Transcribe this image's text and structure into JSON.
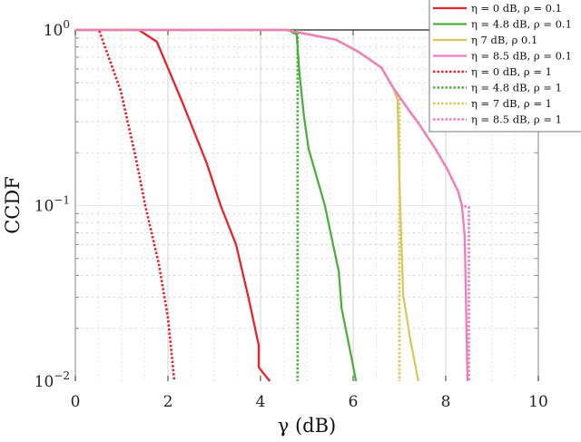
{
  "chart_data": {
    "type": "line",
    "title": "",
    "xlabel": "γ (dB)",
    "ylabel": "CCDF",
    "xlim": [
      0,
      10
    ],
    "ylim": [
      0.01,
      1
    ],
    "yscale": "log",
    "x_ticks": [
      0,
      2,
      4,
      6,
      8,
      10
    ],
    "x_tick_labels": [
      "0",
      "2",
      "4",
      "6",
      "8",
      "10"
    ],
    "y_ticks": [
      1,
      0.1,
      0.01
    ],
    "y_tick_labels": [
      {
        "base": "10",
        "exp": "0"
      },
      {
        "base": "10",
        "exp": "−1"
      },
      {
        "base": "10",
        "exp": "−2"
      }
    ],
    "grid": true,
    "legend_position": "top-right",
    "series": [
      {
        "name": "η = 0 dB, ρ = 0.1",
        "color": "#e8232a",
        "style": "solid",
        "x": [
          0,
          1.37,
          1.76,
          2.0,
          2.29,
          2.84,
          3.14,
          3.47,
          3.75,
          3.96,
          3.96,
          4.2
        ],
        "y": [
          1,
          1.0,
          0.857,
          0.607,
          0.4,
          0.174,
          0.1,
          0.06,
          0.029,
          0.016,
          0.012,
          0.01
        ]
      },
      {
        "name": "η = 4.8 dB, ρ = 0.1",
        "color": "#4caf3e",
        "style": "solid",
        "x": [
          0,
          4.6,
          4.78,
          4.84,
          4.94,
          5.04,
          5.39,
          5.69,
          5.75,
          5.98,
          6.06
        ],
        "y": [
          1,
          1,
          0.94,
          0.57,
          0.32,
          0.21,
          0.1,
          0.042,
          0.026,
          0.013,
          0.01
        ]
      },
      {
        "name": "η = 7 dB, ρ = 0.1",
        "color": "#d9c85a",
        "style": "solid",
        "x": [
          0,
          4.55,
          5.63,
          6.12,
          6.61,
          6.86,
          6.96,
          7.0,
          7.08,
          7.24,
          7.41
        ],
        "y": [
          1,
          1,
          0.88,
          0.75,
          0.61,
          0.47,
          0.4,
          0.137,
          0.031,
          0.017,
          0.01
        ]
      },
      {
        "name": "η = 8.5 dB, ρ = 0.1",
        "color": "#f07cbd",
        "style": "solid",
        "x": [
          0,
          4.55,
          5.63,
          6.12,
          6.61,
          6.86,
          7.2,
          7.39,
          7.78,
          8.04,
          8.27,
          8.35,
          8.41,
          8.47
        ],
        "y": [
          1,
          1,
          0.88,
          0.75,
          0.61,
          0.47,
          0.35,
          0.3,
          0.21,
          0.16,
          0.12,
          0.1,
          0.067,
          0.01
        ]
      },
      {
        "name": "η = 0 dB, ρ = 1",
        "color": "#e8232a",
        "style": "dotted",
        "x": [
          0,
          0.51,
          0.98,
          1.31,
          1.51,
          1.8,
          2.0,
          2.14
        ],
        "y": [
          1,
          1,
          0.45,
          0.185,
          0.1,
          0.047,
          0.023,
          0.01
        ]
      },
      {
        "name": "η = 4.8 dB, ρ = 1",
        "color": "#4caf3e",
        "style": "dotted",
        "x": [
          0,
          4.8,
          4.8
        ],
        "y": [
          1,
          1,
          0.01
        ]
      },
      {
        "name": "η = 7 dB, ρ = 1",
        "color": "#d9c85a",
        "style": "dotted",
        "x": [
          0,
          4.55,
          5.63,
          6.12,
          6.61,
          6.86,
          7.0,
          7.0
        ],
        "y": [
          1,
          1,
          0.88,
          0.75,
          0.61,
          0.47,
          0.42,
          0.01
        ]
      },
      {
        "name": "η = 8.5 dB, ρ = 1",
        "color": "#f07cbd",
        "style": "dotted",
        "x": [
          0,
          4.55,
          5.63,
          6.12,
          6.61,
          6.86,
          7.2,
          7.39,
          7.78,
          8.04,
          8.27,
          8.35,
          8.5,
          8.5
        ],
        "y": [
          1,
          1,
          0.88,
          0.75,
          0.61,
          0.47,
          0.35,
          0.3,
          0.21,
          0.16,
          0.12,
          0.1,
          0.098,
          0.01
        ]
      }
    ]
  },
  "legend": {
    "items": [
      {
        "label": "η = 0 dB, ρ = 0.1",
        "color": "#e8232a",
        "style": "solid"
      },
      {
        "label": "η = 4.8 dB, ρ = 0.1",
        "color": "#4caf3e",
        "style": "solid"
      },
      {
        "label": "η   7 dB, ρ    0.1",
        "color": "#d9c85a",
        "style": "solid"
      },
      {
        "label": "η = 8.5 dB, ρ = 0.1",
        "color": "#f07cbd",
        "style": "solid"
      },
      {
        "label": "η = 0 dB, ρ = 1",
        "color": "#e8232a",
        "style": "dotted"
      },
      {
        "label": "η = 4.8 dB, ρ = 1",
        "color": "#4caf3e",
        "style": "dotted"
      },
      {
        "label": "η = 7 dB, ρ = 1",
        "color": "#d9c85a",
        "style": "dotted"
      },
      {
        "label": "η = 8.5 dB, ρ = 1",
        "color": "#f07cbd",
        "style": "dotted"
      }
    ]
  }
}
